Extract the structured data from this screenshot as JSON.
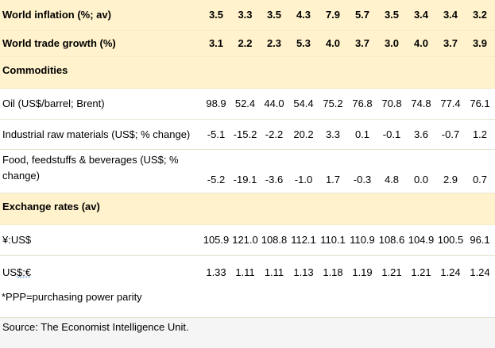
{
  "rows": [
    {
      "label": "World inflation (%; av)",
      "values": [
        "3.5",
        "3.3",
        "3.5",
        "4.3",
        "7.9",
        "5.7",
        "3.5",
        "3.4",
        "3.4",
        "3.2"
      ]
    },
    {
      "label": "World trade growth (%)",
      "values": [
        "3.1",
        "2.2",
        "2.3",
        "5.3",
        "4.0",
        "3.7",
        "3.0",
        "4.0",
        "3.7",
        "3.9"
      ]
    },
    {
      "label": "Commodities"
    },
    {
      "label": "Oil (US$/barrel; Brent)",
      "values": [
        "98.9",
        "52.4",
        "44.0",
        "54.4",
        "75.2",
        "76.8",
        "70.8",
        "74.8",
        "77.4",
        "76.1"
      ]
    },
    {
      "label": "Industrial raw materials (US$; % change)",
      "values": [
        "-5.1",
        "-15.2",
        "-2.2",
        "20.2",
        "3.3",
        "0.1",
        "-0.1",
        "3.6",
        "-0.7",
        "1.2"
      ]
    },
    {
      "label": "Food, feedstuffs & beverages (US$; % change)",
      "values": [
        "-5.2",
        "-19.1",
        "-3.6",
        "-1.0",
        "1.7",
        "-0.3",
        "4.8",
        "0.0",
        "2.9",
        "0.7"
      ]
    },
    {
      "label": "Exchange rates (av)"
    },
    {
      "label": "¥:US$",
      "values": [
        "105.9",
        "121.0",
        "108.8",
        "112.1",
        "110.1",
        "110.9",
        "108.6",
        "104.9",
        "100.5",
        "96.1"
      ]
    },
    {
      "label_prefix": "US",
      "label_underlined": "$:€",
      "values": [
        "1.33",
        "1.11",
        "1.11",
        "1.13",
        "1.18",
        "1.19",
        "1.21",
        "1.21",
        "1.24",
        "1.24"
      ]
    }
  ],
  "notes": {
    "ppp": "*PPP=purchasing power parity",
    "source": "Source: The Economist Intelligence Unit."
  },
  "colors": {
    "highlight": "#fff2cc"
  }
}
